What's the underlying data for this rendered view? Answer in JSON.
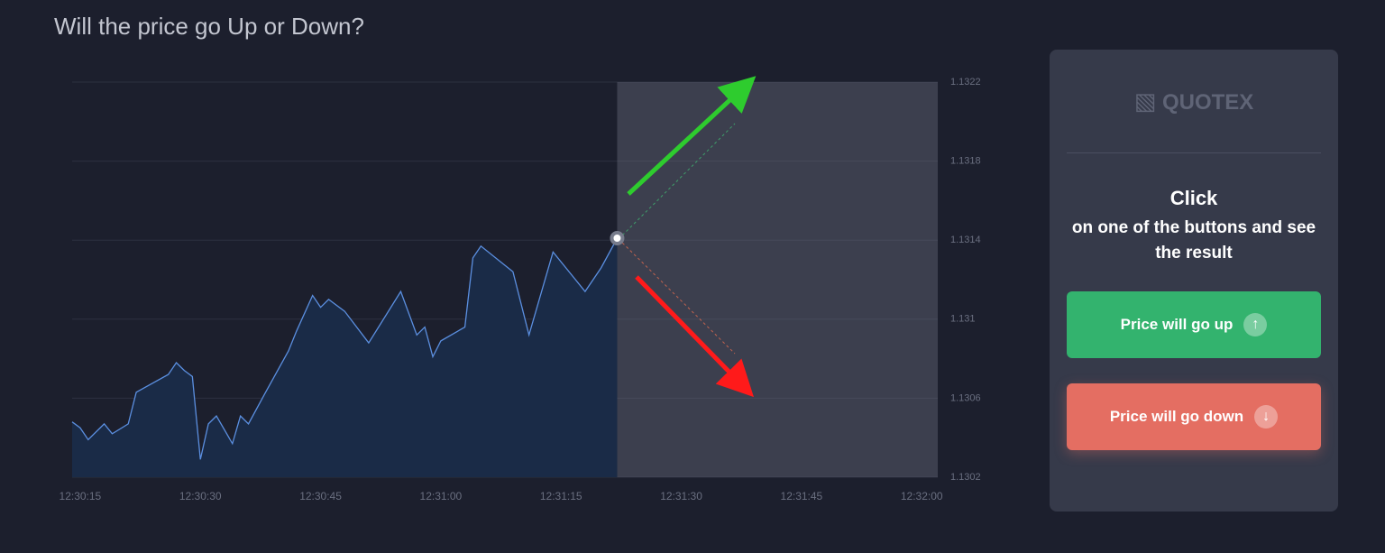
{
  "header": {
    "title": "Will the price go Up or Down?"
  },
  "chart_data": {
    "type": "area",
    "x": [
      "12:30:14",
      "12:30:15",
      "12:30:16",
      "12:30:18",
      "12:30:19",
      "12:30:21",
      "12:30:22",
      "12:30:26",
      "12:30:27",
      "12:30:28",
      "12:30:29",
      "12:30:30",
      "12:30:31",
      "12:30:32",
      "12:30:34",
      "12:30:35",
      "12:30:36",
      "12:30:38",
      "12:30:41",
      "12:30:42",
      "12:30:44",
      "12:30:45",
      "12:30:46",
      "12:30:48",
      "12:30:51",
      "12:30:55",
      "12:30:57",
      "12:30:58",
      "12:30:59",
      "12:31:00",
      "12:31:03",
      "12:31:04",
      "12:31:05",
      "12:31:09",
      "12:31:11",
      "12:31:14",
      "12:31:18",
      "12:31:20",
      "12:31:22"
    ],
    "values": [
      1.13048,
      1.13045,
      1.13039,
      1.13047,
      1.13042,
      1.13047,
      1.13063,
      1.13072,
      1.13078,
      1.13074,
      1.13071,
      1.13029,
      1.13047,
      1.13051,
      1.13037,
      1.13051,
      1.13047,
      1.13062,
      1.13084,
      1.13094,
      1.13112,
      1.13106,
      1.1311,
      1.13104,
      1.13088,
      1.13114,
      1.13092,
      1.13096,
      1.13081,
      1.13089,
      1.13096,
      1.13131,
      1.13137,
      1.13124,
      1.13092,
      1.13134,
      1.13114,
      1.13126,
      1.13141
    ],
    "color": "#5b8fe0",
    "xlim": [
      "12:30:14",
      "12:32:02"
    ],
    "xticks": [
      "12:30:15",
      "12:30:30",
      "12:30:45",
      "12:31:00",
      "12:31:15",
      "12:31:30",
      "12:31:45",
      "12:32:00"
    ],
    "ylim": [
      1.1302,
      1.1322
    ],
    "yticks": [
      1.1302,
      1.1306,
      1.131,
      1.1314,
      1.1318,
      1.1322
    ],
    "grid": true
  },
  "panel": {
    "logo": "QUOTEX",
    "heading": "Click",
    "text": "on one of the buttons and see the result",
    "buttons": [
      "Price will go up",
      "Price will go down"
    ]
  }
}
